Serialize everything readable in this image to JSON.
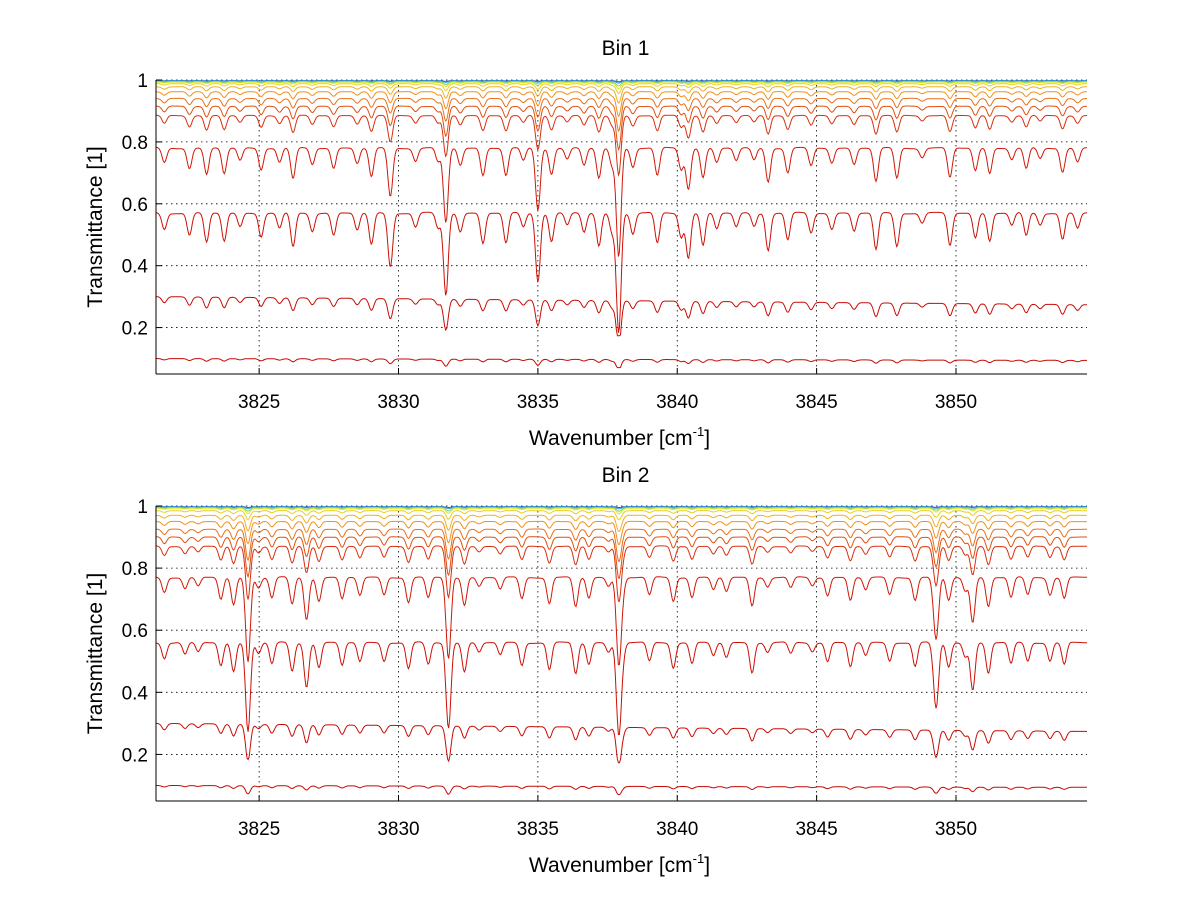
{
  "chart_data": [
    {
      "type": "line",
      "title": "Bin 1",
      "xlabel": "Wavenumber [cm",
      "xlabel_sup": "-1",
      "xlabel_end": "]",
      "ylabel": "Transmittance [1]",
      "xlim": [
        3821.3,
        3854.7
      ],
      "ylim": [
        0.05,
        1.0
      ],
      "xticks": [
        3825,
        3830,
        3835,
        3840,
        3845,
        3850
      ],
      "xtick_labels": [
        "3825",
        "3830",
        "3835",
        "3840",
        "3845",
        "3850"
      ],
      "yticks": [
        0.2,
        0.4,
        0.6,
        0.8,
        1.0
      ],
      "ytick_labels": [
        "0.2",
        "0.4",
        "0.6",
        "0.8",
        "1"
      ],
      "grid": true,
      "series": [
        {
          "baseline": 0.998,
          "depth": 0.002,
          "color": "#1a5fd0"
        },
        {
          "baseline": 0.997,
          "depth": 0.004,
          "color": "#2f9fd0"
        },
        {
          "baseline": 0.995,
          "depth": 0.008,
          "color": "#7fd07a"
        },
        {
          "baseline": 0.993,
          "depth": 0.012,
          "color": "#d8e825"
        },
        {
          "baseline": 0.988,
          "depth": 0.018,
          "color": "#e8d020"
        },
        {
          "baseline": 0.978,
          "depth": 0.03,
          "color": "#f0b020"
        },
        {
          "baseline": 0.962,
          "depth": 0.045,
          "color": "#f09020"
        },
        {
          "baseline": 0.94,
          "depth": 0.06,
          "color": "#e87018"
        },
        {
          "baseline": 0.915,
          "depth": 0.08,
          "color": "#e05010"
        },
        {
          "baseline": 0.885,
          "depth": 0.11,
          "color": "#d83010"
        },
        {
          "baseline": 0.78,
          "depth": 0.2,
          "color": "#d01808"
        },
        {
          "baseline": 0.57,
          "depth": 0.22,
          "color": "#cc1006"
        },
        {
          "baseline": 0.3,
          "depth": 0.13,
          "color": "#c80c05"
        },
        {
          "baseline": 0.1,
          "depth": 0.03,
          "color": "#c40a04"
        }
      ]
    },
    {
      "type": "line",
      "title": "Bin 2",
      "xlabel": "Wavenumber [cm",
      "xlabel_sup": "-1",
      "xlabel_end": "]",
      "ylabel": "Transmittance [1]",
      "xlim": [
        3821.3,
        3854.7
      ],
      "ylim": [
        0.05,
        1.0
      ],
      "xticks": [
        3825,
        3830,
        3835,
        3840,
        3845,
        3850
      ],
      "xtick_labels": [
        "3825",
        "3830",
        "3835",
        "3840",
        "3845",
        "3850"
      ],
      "yticks": [
        0.2,
        0.4,
        0.6,
        0.8,
        1.0
      ],
      "ytick_labels": [
        "0.2",
        "0.4",
        "0.6",
        "0.8",
        "1"
      ],
      "grid": true,
      "series": [
        {
          "baseline": 0.998,
          "depth": 0.002,
          "color": "#1a5fd0"
        },
        {
          "baseline": 0.997,
          "depth": 0.004,
          "color": "#2f9fd0"
        },
        {
          "baseline": 0.995,
          "depth": 0.008,
          "color": "#7fd07a"
        },
        {
          "baseline": 0.993,
          "depth": 0.012,
          "color": "#d8e825"
        },
        {
          "baseline": 0.985,
          "depth": 0.02,
          "color": "#e8d020"
        },
        {
          "baseline": 0.97,
          "depth": 0.035,
          "color": "#f0b020"
        },
        {
          "baseline": 0.95,
          "depth": 0.05,
          "color": "#f09020"
        },
        {
          "baseline": 0.925,
          "depth": 0.07,
          "color": "#e87018"
        },
        {
          "baseline": 0.9,
          "depth": 0.09,
          "color": "#e05010"
        },
        {
          "baseline": 0.87,
          "depth": 0.12,
          "color": "#d83010"
        },
        {
          "baseline": 0.77,
          "depth": 0.19,
          "color": "#d01808"
        },
        {
          "baseline": 0.56,
          "depth": 0.2,
          "color": "#cc1006"
        },
        {
          "baseline": 0.3,
          "depth": 0.13,
          "color": "#c80c05"
        },
        {
          "baseline": 0.1,
          "depth": 0.03,
          "color": "#c40a04"
        }
      ]
    }
  ]
}
